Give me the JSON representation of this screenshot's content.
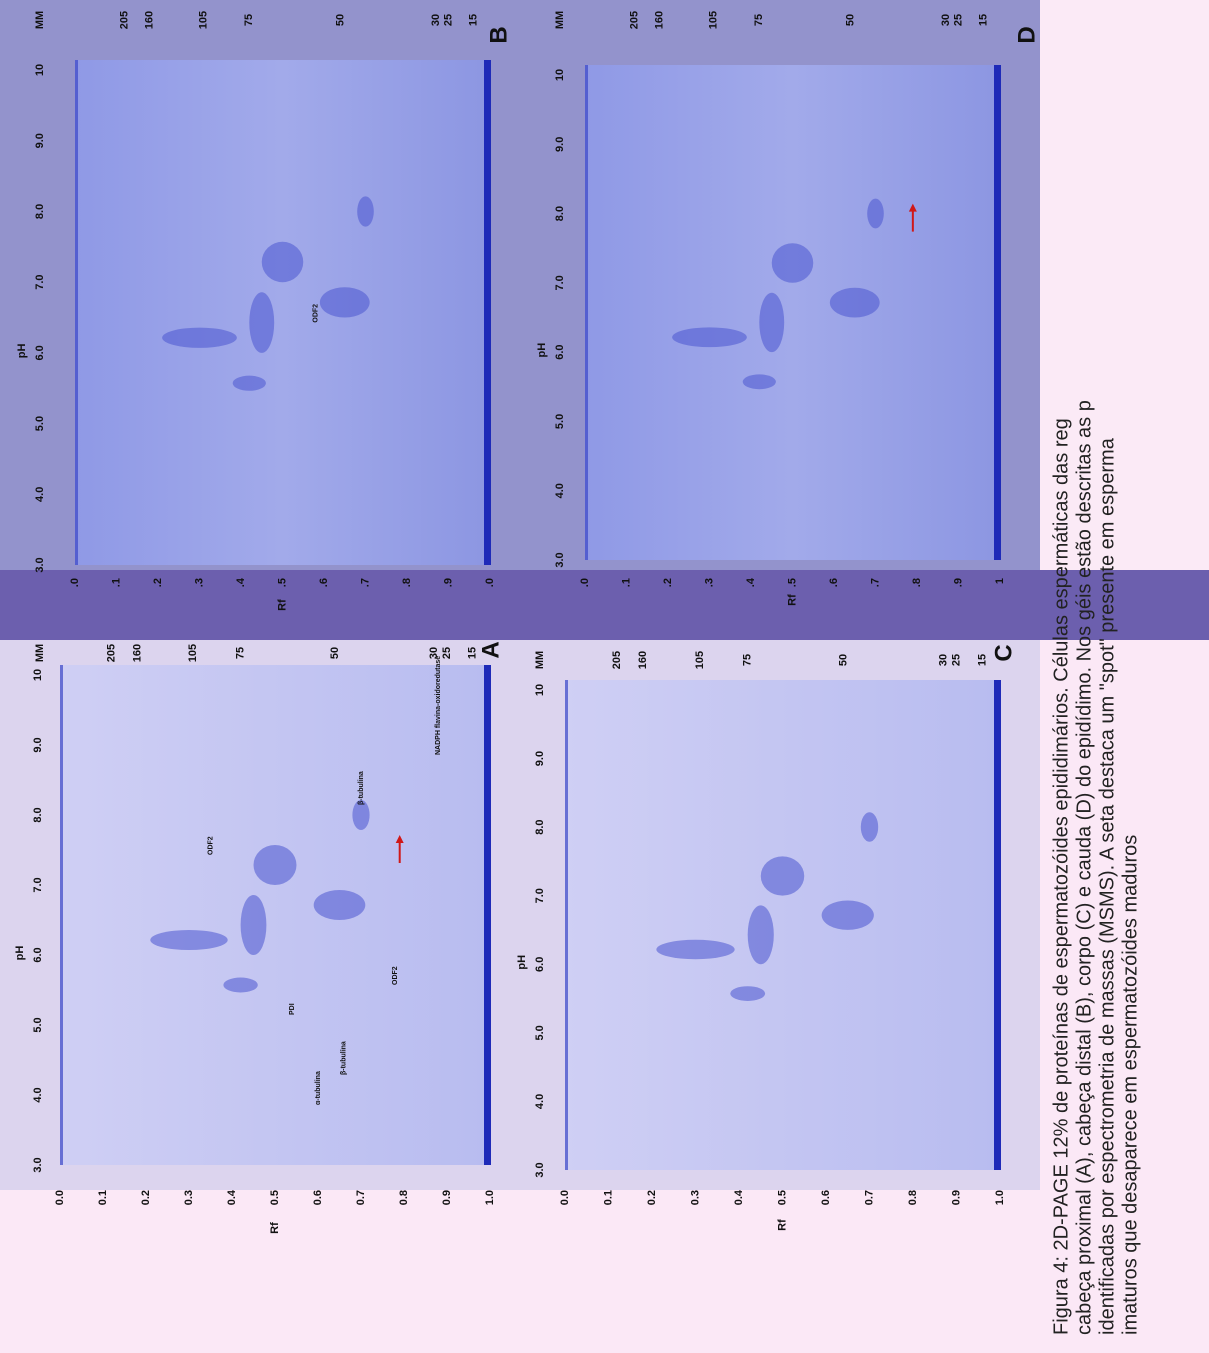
{
  "panels": [
    {
      "label": "A",
      "ph_label": "pH",
      "ph_ticks": [
        "3.0",
        "4.0",
        "5.0",
        "6.0",
        "7.0",
        "8.0",
        "9.0",
        "10"
      ],
      "rf_label": "Rf",
      "rf_ticks": [
        "0.0",
        "0.1",
        "0.2",
        "0.3",
        "0.4",
        "0.5",
        "0.6",
        "0.7",
        "0.8",
        "0.9",
        "1.0"
      ],
      "mm_label": "MM",
      "mm_ticks": [
        "205",
        "160",
        "105",
        "75",
        "50",
        "30",
        "25",
        "15"
      ],
      "annotations": [
        "ODF2",
        "PDI",
        "α-tubulina",
        "β-tubulina",
        "ODF2",
        "NADPH flavina-oxidoredutase",
        "β-tubulina"
      ]
    },
    {
      "label": "B",
      "ph_label": "pH",
      "ph_ticks": [
        "3.0",
        "4.0",
        "5.0",
        "6.0",
        "7.0",
        "8.0",
        "9.0",
        "10"
      ],
      "rf_label": "Rf",
      "rf_ticks": [
        ".0",
        ".1",
        ".2",
        ".3",
        ".4",
        ".5",
        ".6",
        ".7",
        ".8",
        ".9",
        ".0"
      ],
      "mm_label": "MM",
      "mm_ticks": [
        "205",
        "160",
        "105",
        "75",
        "50",
        "30",
        "25",
        "15"
      ],
      "annotations": [
        "ODF2"
      ]
    },
    {
      "label": "C",
      "ph_label": "pH",
      "ph_ticks": [
        "3.0",
        "4.0",
        "5.0",
        "6.0",
        "7.0",
        "8.0",
        "9.0",
        "10"
      ],
      "rf_label": "Rf",
      "rf_ticks": [
        "0.0",
        "0.1",
        "0.2",
        "0.3",
        "0.4",
        "0.5",
        "0.6",
        "0.7",
        "0.8",
        "0.9",
        "1.0"
      ],
      "mm_label": "MM",
      "mm_ticks": [
        "205",
        "160",
        "105",
        "75",
        "50",
        "30",
        "25",
        "15"
      ],
      "annotations": []
    },
    {
      "label": "D",
      "ph_label": "pH",
      "ph_ticks": [
        "3.0",
        "4.0",
        "5.0",
        "6.0",
        "7.0",
        "8.0",
        "9.0",
        "10"
      ],
      "rf_label": "Rf",
      "rf_ticks": [
        ".0",
        ".1",
        ".2",
        ".3",
        ".4",
        ".5",
        ".6",
        ".7",
        ".8",
        ".9",
        "1"
      ],
      "mm_label": "MM",
      "mm_ticks": [
        "205",
        "160",
        "105",
        "75",
        "50",
        "30",
        "25",
        "15"
      ],
      "annotations": []
    }
  ],
  "caption": [
    "Figura 4: 2D-PAGE 12% de proteínas de espermatozóides epididimários. Células espermáticas das reg",
    "cabeça proximal (A), cabeça distal (B), corpo (C) e cauda (D) do epidídimo. Nos géis estão descritas as p",
    "identificadas por espectrometria de massas (MSMS). A seta destaca um \"spot\" presente em esperma",
    "imaturos que desaparece em espermatozóides maduros"
  ]
}
